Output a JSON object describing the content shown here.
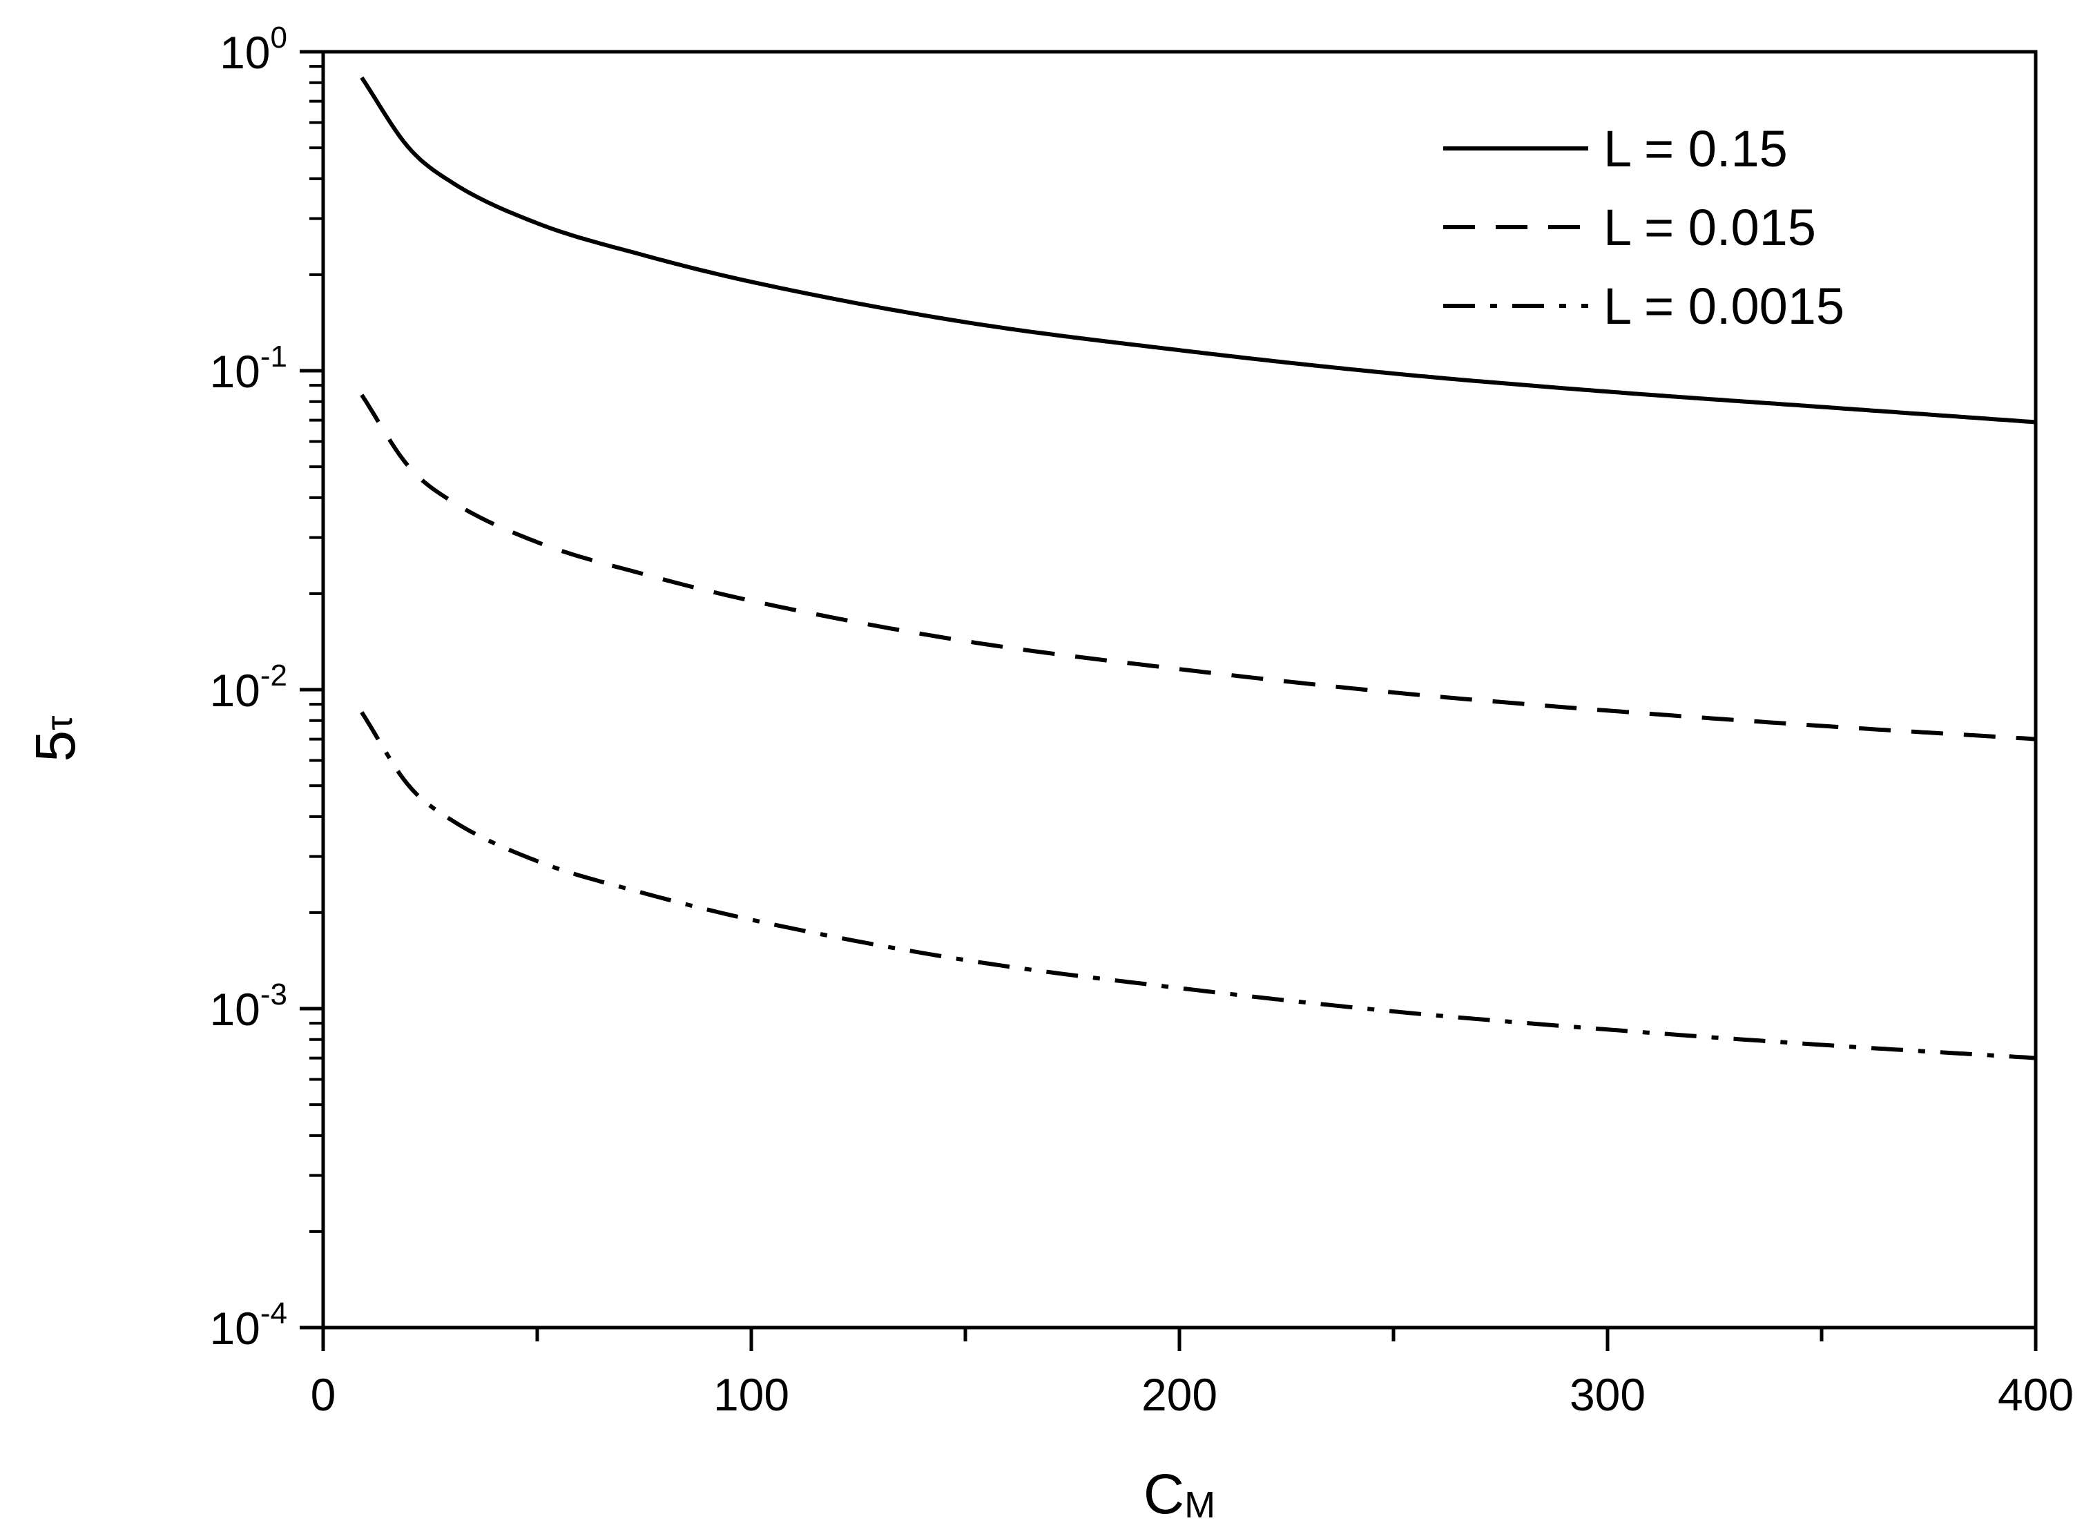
{
  "chart_data": {
    "type": "line",
    "xlabel": {
      "main": "C",
      "sub": "M"
    },
    "ylabel": {
      "main": "5",
      "sub": "τ"
    },
    "xlim": [
      0,
      400
    ],
    "ylim": [
      0.0001,
      1
    ],
    "y_scale": "log",
    "x_ticks": [
      {
        "value": 0,
        "label": "0"
      },
      {
        "value": 100,
        "label": "100"
      },
      {
        "value": 200,
        "label": "200"
      },
      {
        "value": 300,
        "label": "300"
      },
      {
        "value": 400,
        "label": "400"
      }
    ],
    "y_ticks": [
      {
        "value": 1,
        "base": "10",
        "exp": "0"
      },
      {
        "value": 0.1,
        "base": "10",
        "exp": "-1"
      },
      {
        "value": 0.01,
        "base": "10",
        "exp": "-2"
      },
      {
        "value": 0.001,
        "base": "10",
        "exp": "-3"
      },
      {
        "value": 0.0001,
        "base": "10",
        "exp": "-4"
      }
    ],
    "grid": false,
    "legend_position": "top-right",
    "x": [
      9,
      20,
      30,
      50,
      75,
      100,
      150,
      200,
      250,
      300,
      350,
      400
    ],
    "series": [
      {
        "name": "L = 0.15",
        "style": "solid",
        "color": "#000000",
        "values": [
          0.83,
          0.5,
          0.39,
          0.29,
          0.23,
          0.19,
          0.142,
          0.116,
          0.098,
          0.086,
          0.077,
          0.069
        ]
      },
      {
        "name": "L = 0.015",
        "style": "dashed",
        "color": "#000000",
        "values": [
          0.084,
          0.05,
          0.039,
          0.029,
          0.023,
          0.019,
          0.0142,
          0.0116,
          0.0098,
          0.0086,
          0.0077,
          0.007
        ]
      },
      {
        "name": "L = 0.0015",
        "style": "dashdot",
        "color": "#000000",
        "values": [
          0.0085,
          0.005,
          0.0039,
          0.0029,
          0.0023,
          0.0019,
          0.00142,
          0.00116,
          0.00098,
          0.00086,
          0.00077,
          0.0007
        ]
      }
    ]
  }
}
